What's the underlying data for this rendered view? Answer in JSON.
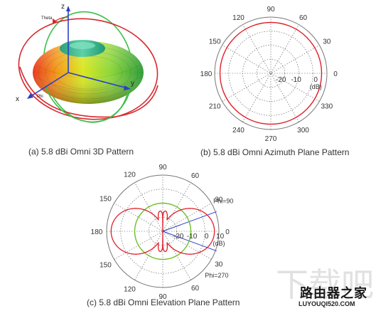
{
  "panel_a": {
    "caption": "(a) 5.8 dBi Omni 3D Pattern",
    "axis_labels": {
      "z": "z",
      "x": "x",
      "y": "y",
      "theta": "Theta",
      "phi": "Phi"
    }
  },
  "panel_b": {
    "caption": "(b) 5.8 dBi Omni Azimuth Plane Pattern",
    "angle_labels": [
      "0",
      "30",
      "60",
      "90",
      "120",
      "150",
      "180",
      "210",
      "240",
      "270",
      "300",
      "330"
    ],
    "ring_labels": [
      "-20",
      "-10",
      "0"
    ],
    "unit": "(dB)"
  },
  "panel_c": {
    "caption": "(c) 5.8 dBi Omni Elevation Plane Pattern",
    "angle_labels_right": [
      "90",
      "60",
      "30",
      "0",
      "30",
      "60",
      "90"
    ],
    "angle_labels_left": [
      "120",
      "150",
      "180",
      "150",
      "120"
    ],
    "ring_labels": [
      "-20",
      "-10",
      "0",
      "10"
    ],
    "unit": "(dB)",
    "phi_top": "Phi=90",
    "phi_bottom": "Phi=270"
  },
  "watermark": {
    "ghost": "下载吧",
    "title": "路由器之家",
    "url": "LUYOUQI520.COM"
  },
  "colors": {
    "pattern_red": "#e0202a",
    "pattern_green": "#6cbf2c",
    "ring_grey": "#777777",
    "axis_blue": "#2c3fc8",
    "grid_dots": "#555555"
  }
}
